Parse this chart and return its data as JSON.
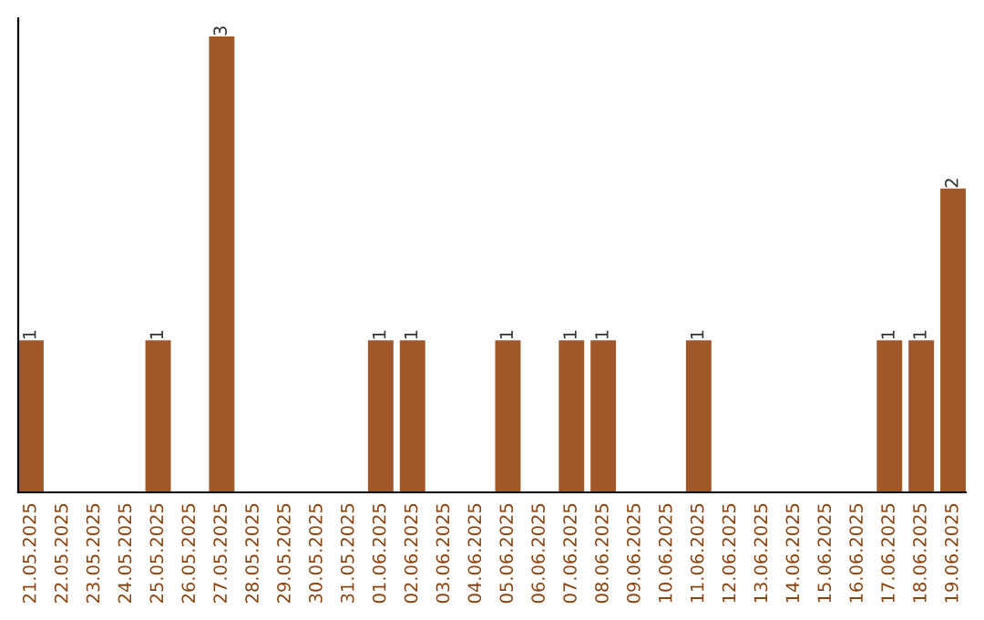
{
  "chart_data": {
    "type": "bar",
    "categories": [
      "21.05.2025",
      "22.05.2025",
      "23.05.2025",
      "24.05.2025",
      "25.05.2025",
      "26.05.2025",
      "27.05.2025",
      "28.05.2025",
      "29.05.2025",
      "30.05.2025",
      "31.05.2025",
      "01.06.2025",
      "02.06.2025",
      "03.06.2025",
      "04.06.2025",
      "05.06.2025",
      "06.06.2025",
      "07.06.2025",
      "08.06.2025",
      "09.06.2025",
      "10.06.2025",
      "11.06.2025",
      "12.06.2025",
      "13.06.2025",
      "14.06.2025",
      "15.06.2025",
      "16.06.2025",
      "17.06.2025",
      "18.06.2025",
      "19.06.2025"
    ],
    "values": [
      1,
      0,
      0,
      0,
      1,
      0,
      3,
      0,
      0,
      0,
      0,
      1,
      1,
      0,
      0,
      1,
      0,
      1,
      1,
      0,
      0,
      1,
      0,
      0,
      0,
      0,
      0,
      1,
      1,
      2
    ],
    "color": "#a0582a",
    "value_labels": [
      "1",
      null,
      null,
      null,
      "1",
      null,
      "3",
      null,
      null,
      null,
      null,
      "1",
      "1",
      null,
      null,
      "1",
      null,
      "1",
      "1",
      null,
      null,
      "1",
      null,
      null,
      null,
      null,
      null,
      "1",
      "1",
      "2"
    ],
    "tick_labels": "x",
    "grid": false,
    "legend": false
  }
}
